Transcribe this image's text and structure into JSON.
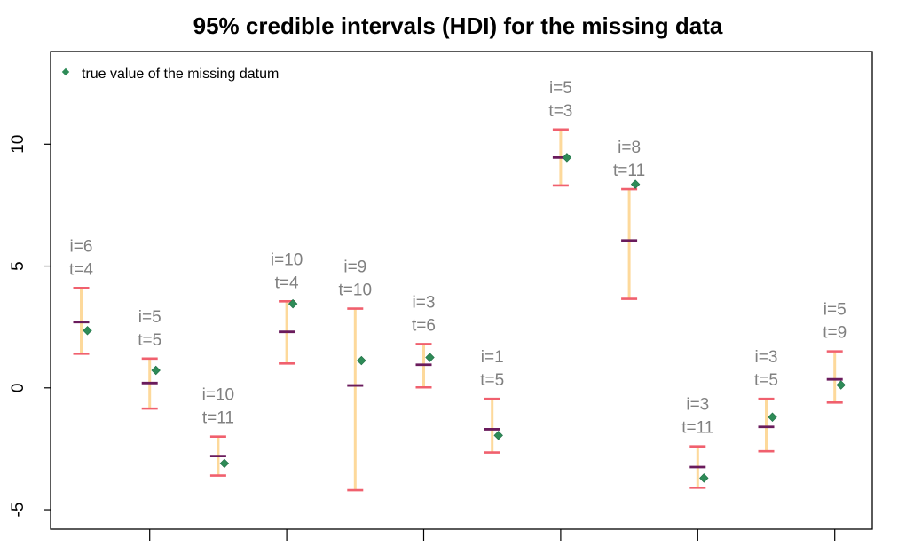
{
  "chart_data": {
    "type": "errorbar",
    "title": "95% credible intervals (HDI) for the missing data",
    "xlabel": "",
    "ylabel": "",
    "ylim": [
      -5.8,
      13.8
    ],
    "yticks": [
      -5,
      0,
      5,
      10
    ],
    "ytick_labels": [
      "-5",
      "0",
      "5",
      "10"
    ],
    "x_major_ticks": [
      2,
      4,
      6,
      8,
      10,
      12
    ],
    "x_tick_labels_shown": false,
    "legend": {
      "position": "top-left",
      "label": "true value of the missing datum"
    },
    "colors": {
      "interval_line": "#FDD99B",
      "interval_caps": "#F0606E",
      "point_estimate": "#6A1B5C",
      "true_value": "#2E8B57",
      "annotation": "#808080"
    },
    "points": [
      {
        "label_i": "i=6",
        "label_t": "t=4",
        "lower": 1.4,
        "upper": 4.1,
        "estimate": 2.7,
        "true": 2.35
      },
      {
        "label_i": "i=5",
        "label_t": "t=5",
        "lower": -0.85,
        "upper": 1.2,
        "estimate": 0.2,
        "true": 0.72
      },
      {
        "label_i": "i=10",
        "label_t": "t=11",
        "lower": -3.6,
        "upper": -2.0,
        "estimate": -2.8,
        "true": -3.1
      },
      {
        "label_i": "i=10",
        "label_t": "t=4",
        "lower": 1.0,
        "upper": 3.55,
        "estimate": 2.3,
        "true": 3.45
      },
      {
        "label_i": "i=9",
        "label_t": "t=10",
        "lower": -4.2,
        "upper": 3.25,
        "estimate": 0.1,
        "true": 1.12
      },
      {
        "label_i": "i=3",
        "label_t": "t=6",
        "lower": 0.02,
        "upper": 1.8,
        "estimate": 0.95,
        "true": 1.25
      },
      {
        "label_i": "i=1",
        "label_t": "t=5",
        "lower": -2.65,
        "upper": -0.45,
        "estimate": -1.7,
        "true": -1.95
      },
      {
        "label_i": "i=5",
        "label_t": "t=3",
        "lower": 8.3,
        "upper": 10.6,
        "estimate": 9.45,
        "true": 9.45
      },
      {
        "label_i": "i=8",
        "label_t": "t=11",
        "lower": 3.65,
        "upper": 8.15,
        "estimate": 6.05,
        "true": 8.35
      },
      {
        "label_i": "i=3",
        "label_t": "t=11",
        "lower": -4.1,
        "upper": -2.4,
        "estimate": -3.25,
        "true": -3.7
      },
      {
        "label_i": "i=3",
        "label_t": "t=5",
        "lower": -2.6,
        "upper": -0.45,
        "estimate": -1.6,
        "true": -1.2
      },
      {
        "label_i": "i=5",
        "label_t": "t=9",
        "lower": -0.6,
        "upper": 1.5,
        "estimate": 0.35,
        "true": 0.12
      }
    ]
  }
}
